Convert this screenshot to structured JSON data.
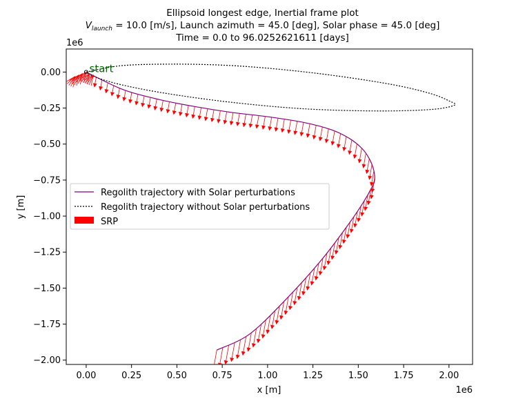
{
  "chart_data": {
    "type": "line",
    "title_lines": [
      "Ellipsoid longest edge, Inertial frame plot",
      "Launch azimuth = 45.0 [deg], Solar phase = 45.0 [deg]",
      "Time = 0.0 to 96.0252621611 [days]"
    ],
    "title_vlaunch": {
      "symbol": "V",
      "subscript": "launch",
      "value_text": " = 10.0 [m/s], "
    },
    "xlabel": "x [m]",
    "ylabel": "y [m]",
    "x_offset_text": "1e6",
    "y_offset_text": "1e6",
    "xlim": [
      -0.11,
      2.13
    ],
    "ylim": [
      -2.03,
      0.16
    ],
    "x_ticks": [
      0.0,
      0.25,
      0.5,
      0.75,
      1.0,
      1.25,
      1.5,
      1.75,
      2.0
    ],
    "x_tick_labels": [
      "0.00",
      "0.25",
      "0.50",
      "0.75",
      "1.00",
      "1.25",
      "1.50",
      "1.75",
      "2.00"
    ],
    "y_ticks": [
      0.0,
      -0.25,
      -0.5,
      -0.75,
      -1.0,
      -1.25,
      -1.5,
      -1.75,
      -2.0
    ],
    "y_tick_labels": [
      "0.00",
      "−0.25",
      "−0.50",
      "−0.75",
      "−1.00",
      "−1.25",
      "−1.50",
      "−1.75",
      "−2.00"
    ],
    "grid": false,
    "legend_position": "center-left",
    "annotation": {
      "text": "start",
      "x": 0.01,
      "y": 0.0,
      "color": "#006400"
    },
    "series": [
      {
        "name": "Regolith trajectory with Solar perturbations",
        "color": "#800080",
        "style": "solid",
        "x": [
          0.0,
          0.2,
          0.4,
          0.6,
          0.8,
          1.0,
          1.2,
          1.35,
          1.45,
          1.52,
          1.56,
          1.585,
          1.59,
          1.575,
          1.53,
          1.45,
          1.3,
          1.1,
          0.9,
          0.72
        ],
        "y": [
          0.0,
          -0.12,
          -0.19,
          -0.24,
          -0.28,
          -0.31,
          -0.35,
          -0.4,
          -0.46,
          -0.53,
          -0.6,
          -0.68,
          -0.75,
          -0.8,
          -0.9,
          -1.05,
          -1.3,
          -1.58,
          -1.82,
          -1.93
        ]
      },
      {
        "name": "Regolith trajectory without Solar perturbations",
        "color": "#000000",
        "style": "dotted",
        "x": [
          0.0,
          0.2,
          0.5,
          0.8,
          1.1,
          1.4,
          1.7,
          1.9,
          2.0,
          2.03,
          1.9,
          1.6,
          1.2,
          0.8,
          0.45,
          0.2,
          0.05,
          0.0
        ],
        "y": [
          0.0,
          0.045,
          0.055,
          0.045,
          0.015,
          -0.03,
          -0.09,
          -0.15,
          -0.2,
          -0.23,
          -0.26,
          -0.27,
          -0.255,
          -0.21,
          -0.15,
          -0.09,
          -0.035,
          0.0
        ]
      }
    ],
    "srp": {
      "name": "SRP",
      "color": "#ff0000",
      "direction_deg": -100,
      "near_start_cluster": {
        "x": [
          -0.06,
          -0.04,
          -0.02,
          0.0,
          0.02,
          0.04
        ],
        "y": [
          -0.03,
          -0.02,
          -0.01,
          0.0,
          -0.01,
          -0.02
        ]
      },
      "arrow_count": 86
    }
  }
}
